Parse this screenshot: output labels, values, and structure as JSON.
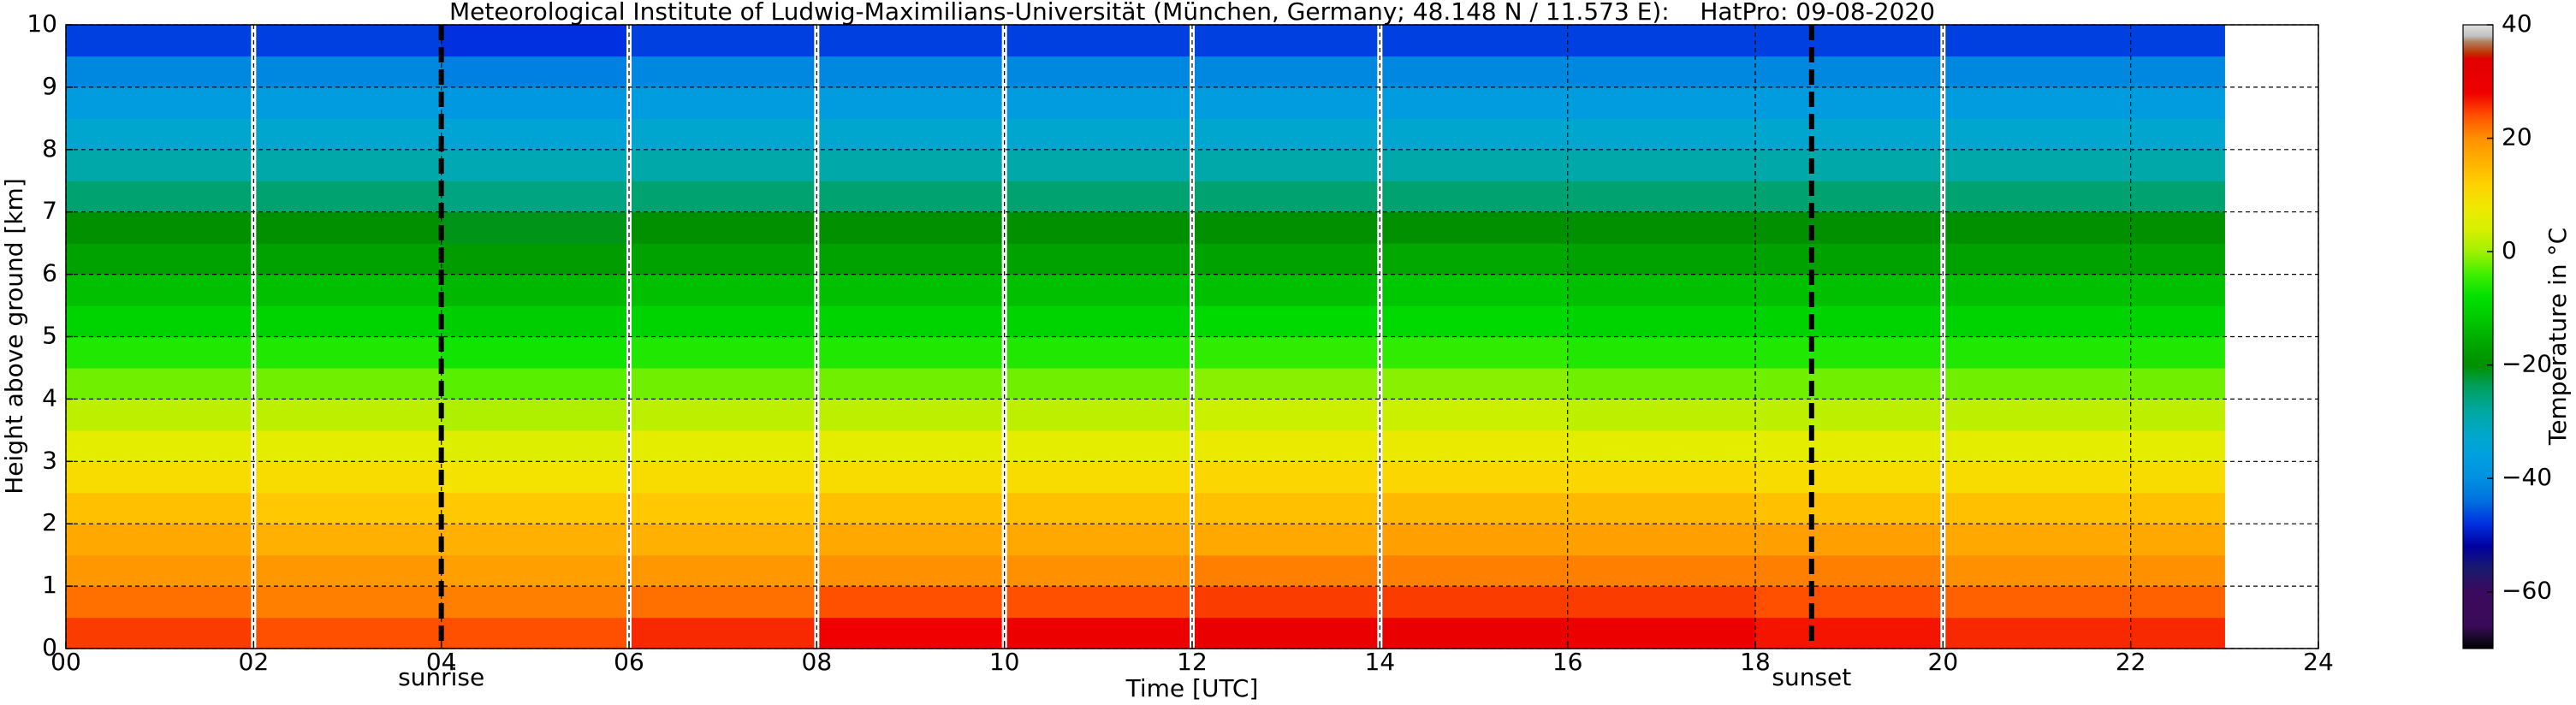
{
  "chart_data": {
    "type": "heatmap",
    "title": "Meteorological Institute of Ludwig-Maximilians-Universität (München, Germany; 48.148 N / 11.573 E):    HatPro: 09-08-2020",
    "x_label": "Time [UTC]",
    "y_label": "Height above ground [km]",
    "colorbar_label": "Temperature in °C",
    "x": [
      0,
      2,
      4,
      6,
      8,
      10,
      12,
      14,
      16,
      18,
      20,
      22,
      23
    ],
    "y": [
      0,
      0.5,
      1,
      1.5,
      2,
      2.5,
      3,
      3.5,
      4,
      4.5,
      5,
      5.5,
      6,
      6.5,
      7,
      7.5,
      8,
      8.5,
      9,
      9.5,
      10
    ],
    "values": [
      [
        25,
        24,
        24,
        26,
        28,
        29,
        30,
        30,
        29,
        27,
        26,
        26
      ],
      [
        22,
        21,
        21,
        22,
        24,
        24,
        25,
        25,
        25,
        24,
        23,
        23
      ],
      [
        19,
        19,
        18,
        19,
        20,
        20,
        21,
        21,
        21,
        21,
        20,
        20
      ],
      [
        17,
        16,
        16,
        16,
        17,
        17,
        17,
        18,
        18,
        18,
        17,
        17
      ],
      [
        14,
        13,
        13,
        13,
        14,
        14,
        14,
        15,
        15,
        14,
        14,
        14
      ],
      [
        10,
        10,
        9,
        10,
        10,
        10,
        11,
        11,
        11,
        10,
        10,
        10
      ],
      [
        6,
        6,
        5,
        6,
        6,
        6,
        7,
        7,
        6,
        6,
        6,
        6
      ],
      [
        2,
        2,
        1,
        2,
        2,
        2,
        3,
        3,
        2,
        2,
        2,
        2
      ],
      [
        -2,
        -2,
        -3,
        -2,
        -2,
        -2,
        -1,
        -1,
        -2,
        -2,
        -2,
        -2
      ],
      [
        -6,
        -6,
        -7,
        -6,
        -6,
        -6,
        -5,
        -5,
        -6,
        -6,
        -6,
        -6
      ],
      [
        -10,
        -10,
        -11,
        -10,
        -10,
        -10,
        -9,
        -9,
        -10,
        -10,
        -10,
        -10
      ],
      [
        -13,
        -13,
        -14,
        -13,
        -13,
        -13,
        -13,
        -12,
        -13,
        -13,
        -13,
        -13
      ],
      [
        -17,
        -17,
        -18,
        -17,
        -17,
        -17,
        -17,
        -16,
        -17,
        -17,
        -17,
        -17
      ],
      [
        -20,
        -20,
        -21,
        -20,
        -20,
        -20,
        -20,
        -20,
        -20,
        -20,
        -20,
        -20
      ],
      [
        -25,
        -25,
        -26,
        -25,
        -25,
        -25,
        -25,
        -25,
        -25,
        -25,
        -25,
        -25
      ],
      [
        -29,
        -29,
        -30,
        -29,
        -29,
        -29,
        -29,
        -29,
        -29,
        -29,
        -29,
        -29
      ],
      [
        -33,
        -33,
        -34,
        -33,
        -33,
        -33,
        -33,
        -33,
        -33,
        -33,
        -33,
        -33
      ],
      [
        -37,
        -37,
        -38,
        -37,
        -37,
        -37,
        -37,
        -37,
        -37,
        -37,
        -37,
        -37
      ],
      [
        -41,
        -41,
        -42,
        -41,
        -41,
        -41,
        -41,
        -41,
        -41,
        -41,
        -41,
        -41
      ],
      [
        -47,
        -47,
        -48,
        -47,
        -47,
        -47,
        -47,
        -47,
        -47,
        -47,
        -47,
        -47
      ]
    ],
    "gaps": [
      2,
      6,
      8,
      10,
      12,
      14,
      20
    ],
    "annotations": [
      {
        "x": 4.0,
        "label": "sunrise"
      },
      {
        "x": 18.6,
        "label": "sunset"
      }
    ],
    "xlim": [
      0,
      24
    ],
    "xticks": [
      {
        "value": 0,
        "label": "00"
      },
      {
        "value": 2,
        "label": "02"
      },
      {
        "value": 4,
        "label": "04"
      },
      {
        "value": 6,
        "label": "06"
      },
      {
        "value": 8,
        "label": "08"
      },
      10,
      12,
      14,
      16,
      18,
      20,
      22,
      24
    ],
    "ylim": [
      0,
      10
    ],
    "yticks": [
      0,
      1,
      2,
      3,
      4,
      5,
      6,
      7,
      8,
      9,
      10
    ],
    "grid": true,
    "clim": [
      -70,
      40
    ],
    "cticks": [
      {
        "value": -60,
        "label": "−60"
      },
      {
        "value": -40,
        "label": "−40"
      },
      {
        "value": -20,
        "label": "−20"
      },
      0,
      20,
      40
    ],
    "colormap": [
      {
        "value": -70,
        "color": "#000000"
      },
      {
        "value": -68,
        "color": "#1a0a2a"
      },
      {
        "value": -66,
        "color": "#3a0a5a"
      },
      {
        "value": -60,
        "color": "#3b0a5e"
      },
      {
        "value": -56,
        "color": "#1a1a6e"
      },
      {
        "value": -52,
        "color": "#0000a0"
      },
      {
        "value": -48,
        "color": "#0030e0"
      },
      {
        "value": -44,
        "color": "#0070e0"
      },
      {
        "value": -40,
        "color": "#0090e0"
      },
      {
        "value": -36,
        "color": "#00a0e0"
      },
      {
        "value": -32,
        "color": "#00a8c8"
      },
      {
        "value": -28,
        "color": "#00a8a0"
      },
      {
        "value": -24,
        "color": "#00a060"
      },
      {
        "value": -20,
        "color": "#009000"
      },
      {
        "value": -16,
        "color": "#00a800"
      },
      {
        "value": -12,
        "color": "#00c800"
      },
      {
        "value": -8,
        "color": "#00e000"
      },
      {
        "value": -4,
        "color": "#40f000"
      },
      {
        "value": 0,
        "color": "#a0f000"
      },
      {
        "value": 4,
        "color": "#d8f000"
      },
      {
        "value": 8,
        "color": "#f0e800"
      },
      {
        "value": 12,
        "color": "#ffd000"
      },
      {
        "value": 16,
        "color": "#ffb000"
      },
      {
        "value": 20,
        "color": "#ff9000"
      },
      {
        "value": 24,
        "color": "#ff5000"
      },
      {
        "value": 28,
        "color": "#f00000"
      },
      {
        "value": 34,
        "color": "#e00000"
      },
      {
        "value": 35,
        "color": "#c03000"
      },
      {
        "value": 37,
        "color": "#b08060"
      },
      {
        "value": 38,
        "color": "#c0c0c0"
      },
      {
        "value": 40,
        "color": "#e0e0e0"
      }
    ]
  }
}
